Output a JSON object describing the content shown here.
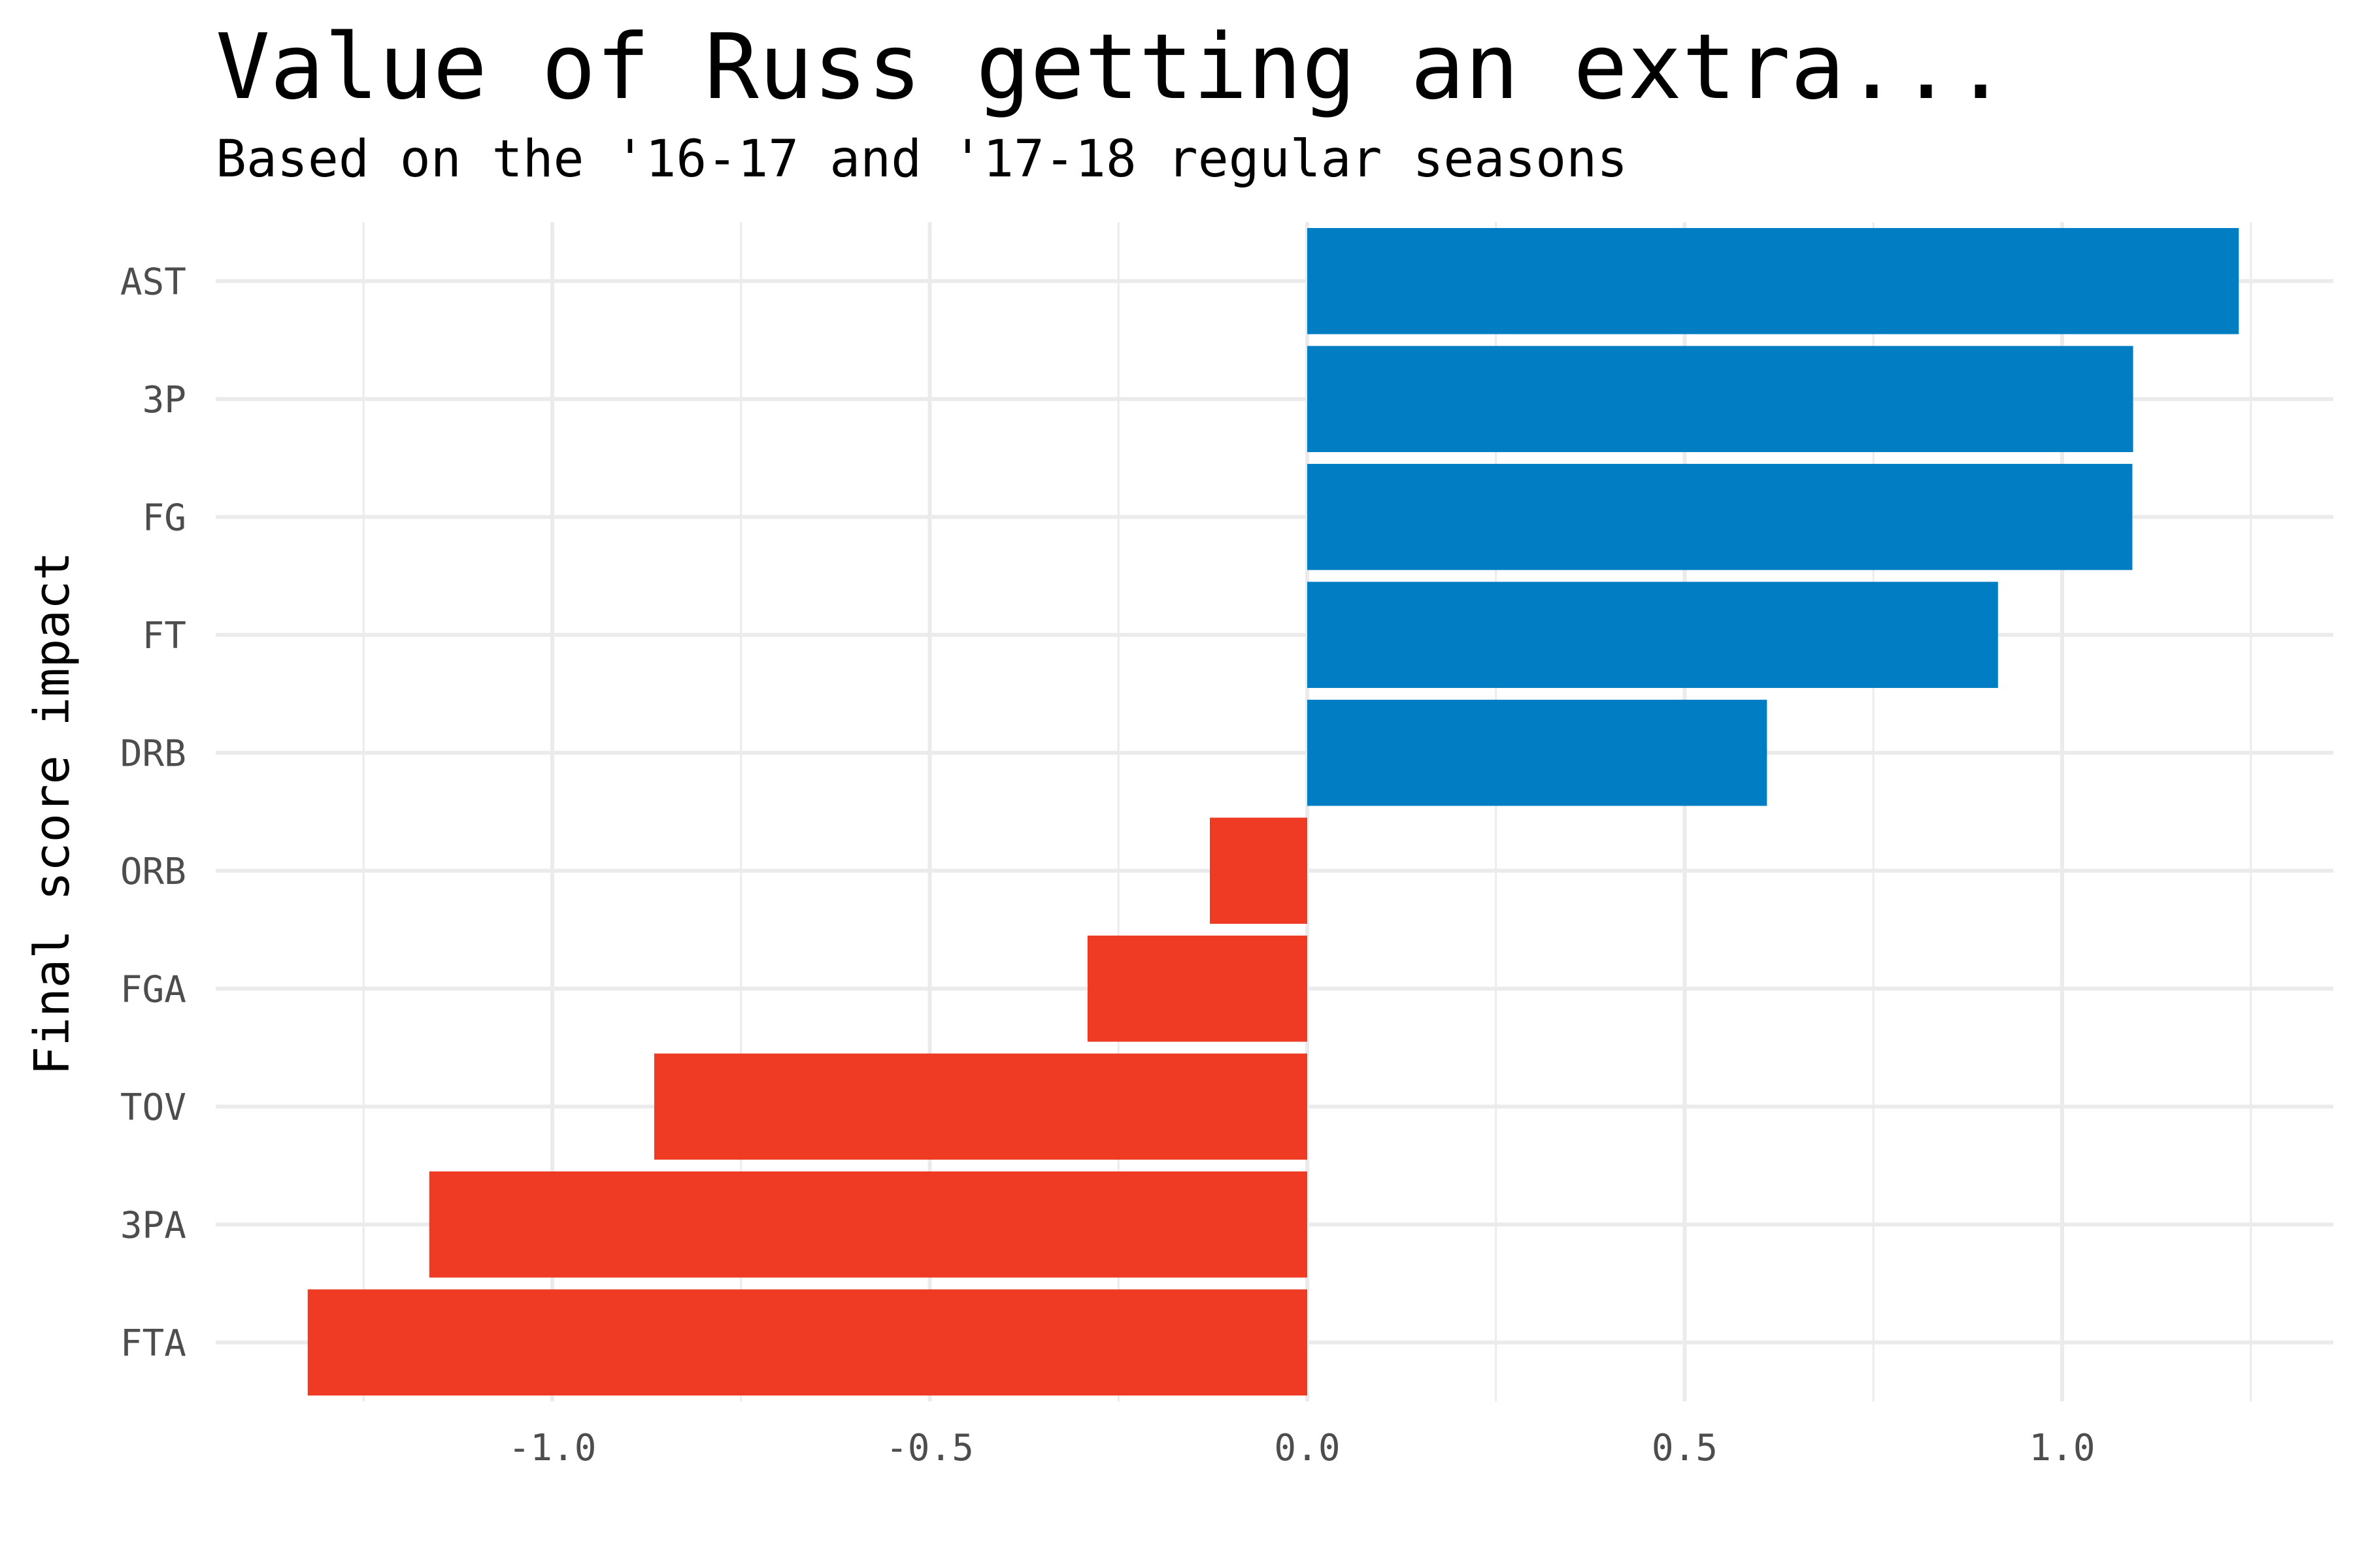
{
  "chart_data": {
    "type": "bar",
    "orientation": "horizontal",
    "title": "Value of Russ getting an extra...",
    "subtitle": "Based on the '16-17 and '17-18 regular seasons",
    "ylabel": "Final score impact",
    "xlabel": "",
    "categories": [
      "AST",
      "3P",
      "FG",
      "FT",
      "DRB",
      "ORB",
      "FGA",
      "TOV",
      "3PA",
      "FTA"
    ],
    "values": [
      1.234,
      1.094,
      1.093,
      0.915,
      0.609,
      -0.129,
      -0.291,
      -0.865,
      -1.163,
      -1.324
    ],
    "xlim": [
      -1.45,
      1.35
    ],
    "xticks": [
      -1.0,
      -0.5,
      0.0,
      0.5,
      1.0
    ],
    "xtick_labels": [
      "-1.0",
      "-0.5",
      "0.0",
      "0.5",
      "1.0"
    ],
    "colors": {
      "positive": "#007dc3",
      "negative": "#ef3b24"
    },
    "grid": true,
    "legend": "none"
  }
}
